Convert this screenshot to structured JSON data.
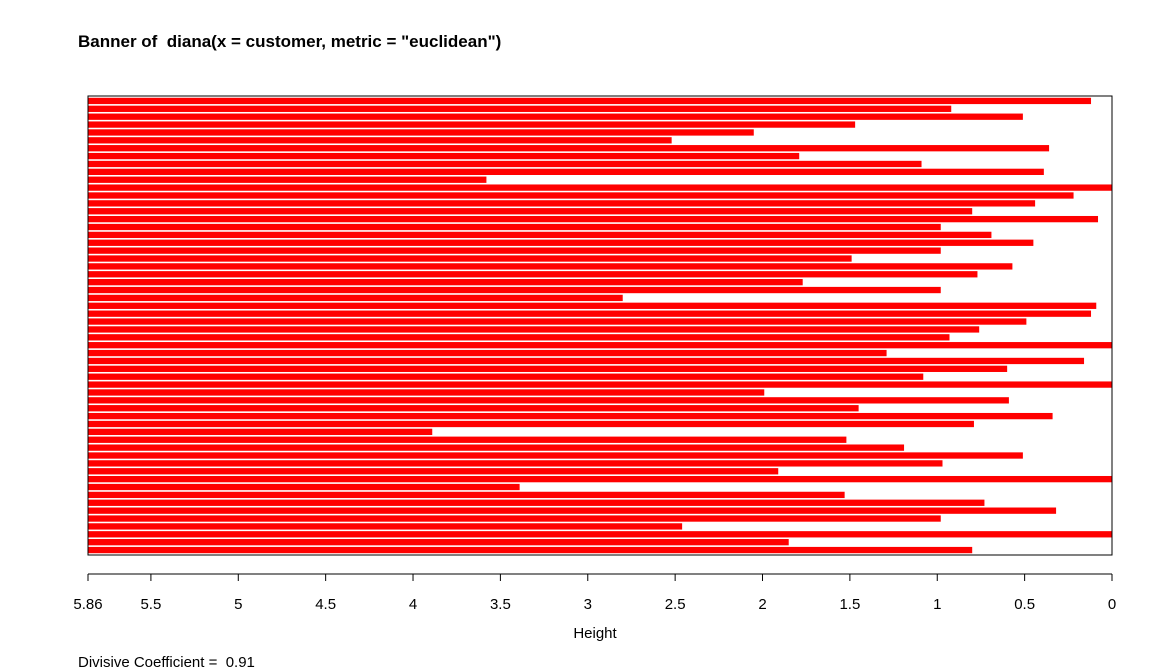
{
  "chart_data": {
    "type": "bar",
    "orientation": "horizontal",
    "title": "Banner of  diana(x = customer, metric = \"euclidean\")",
    "xlabel": "Height",
    "footer": "Divisive Coefficient =  0.91",
    "xlim": [
      5.86,
      0
    ],
    "xtick_values": [
      5.86,
      5.5,
      5,
      4.5,
      4,
      3.5,
      3,
      2.5,
      2,
      1.5,
      1,
      0.5,
      0
    ],
    "xtick_labels": [
      "5.86",
      "5.5",
      "5",
      "4.5",
      "4",
      "3.5",
      "3",
      "2.5",
      "2",
      "1.5",
      "1",
      "0.5",
      "0"
    ],
    "grid": false,
    "bar_color": "#ff0000",
    "values": [
      0.12,
      0.92,
      0.51,
      1.47,
      2.05,
      2.52,
      0.36,
      1.79,
      1.09,
      0.39,
      3.58,
      0,
      0.22,
      0.44,
      0.8,
      0.08,
      0.98,
      0.69,
      0.45,
      0.98,
      1.49,
      0.57,
      0.77,
      1.77,
      0.98,
      2.8,
      0.09,
      0.12,
      0.49,
      0.76,
      0.93,
      0,
      1.29,
      0.16,
      0.6,
      1.08,
      0,
      1.99,
      0.59,
      1.45,
      0.34,
      0.79,
      3.89,
      1.52,
      1.19,
      0.51,
      0.97,
      1.91,
      0,
      3.39,
      1.53,
      0.73,
      0.32,
      0.98,
      2.46,
      0,
      1.85,
      0.8
    ]
  }
}
